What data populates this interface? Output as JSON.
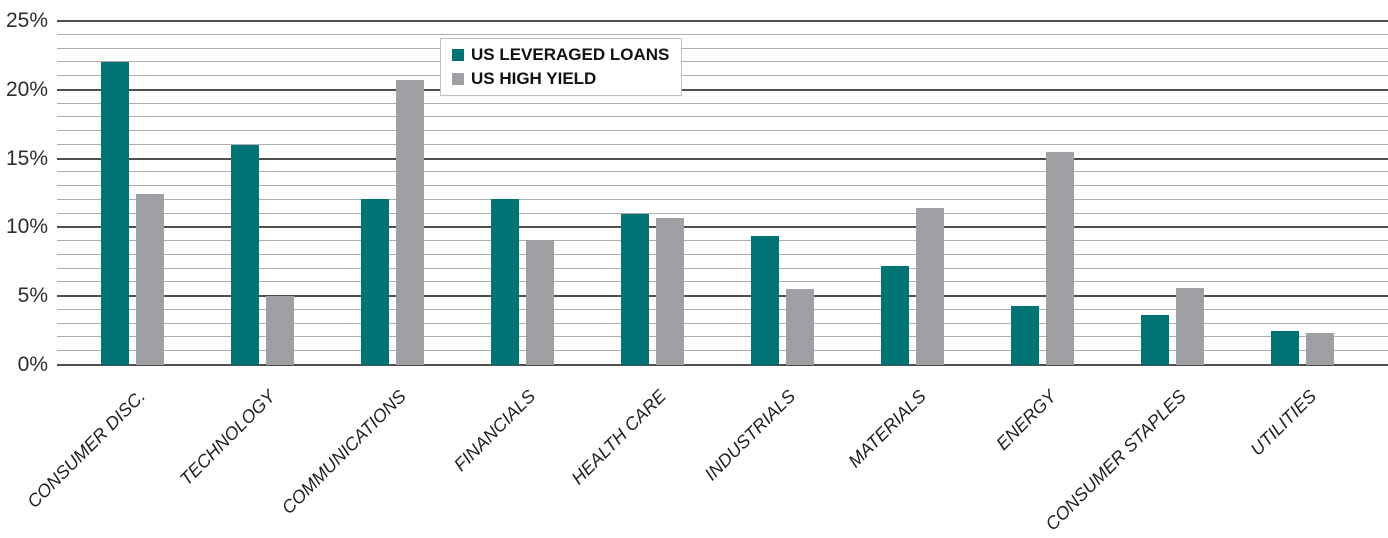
{
  "chart_data": {
    "type": "bar",
    "title": "",
    "categories": [
      "CONSUMER DISC.",
      "TECHNOLOGY",
      "COMMUNICATIONS",
      "FINANCIALS",
      "HEALTH CARE",
      "INDUSTRIALS",
      "MATERIALS",
      "ENERGY",
      "CONSUMER STAPLES",
      "UTILITIES"
    ],
    "series": [
      {
        "name": "US LEVERAGED LOANS",
        "color": "#007475",
        "values": [
          22.0,
          16.0,
          12.1,
          12.1,
          11.0,
          9.4,
          7.2,
          4.3,
          3.6,
          2.5
        ]
      },
      {
        "name": "US HIGH YIELD",
        "color": "#9ea0a3",
        "values": [
          12.4,
          5.0,
          20.7,
          9.1,
          10.7,
          5.5,
          11.4,
          15.5,
          5.6,
          2.3
        ]
      }
    ],
    "xlabel": "",
    "ylabel": "",
    "ylim": [
      0,
      25
    ],
    "y_axis": {
      "unit": "%",
      "major_step": 5,
      "minor_step": 1,
      "tick_labels": [
        "0%",
        "5%",
        "10%",
        "15%",
        "20%",
        "25%"
      ]
    },
    "grid": "horizontal, minor every 1%, major every 5%",
    "legend_position": "top, boxed, left-of-center",
    "category_label_style": "italic, rotated 45 degrees"
  },
  "colors": {
    "major_grid": "#4f4f4f",
    "minor_grid": "#aeaeae",
    "axis_text": "#2e2e2e",
    "category_text": "#1f1f1f",
    "legend_border": "#c0c0c0",
    "background": "#ffffff"
  }
}
